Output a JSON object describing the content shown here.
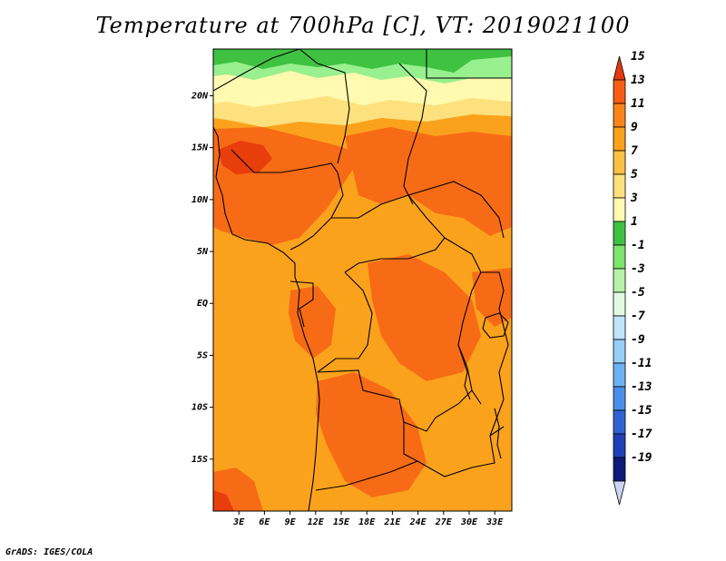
{
  "title": "Temperature at 700hPa [C], VT: 2019021100",
  "credit": "GrADS: IGES/COLA",
  "map": {
    "lon_range": [
      0,
      35
    ],
    "lat_range": [
      -20,
      24.5
    ],
    "x_ticks": [
      "3E",
      "6E",
      "9E",
      "12E",
      "15E",
      "18E",
      "21E",
      "24E",
      "27E",
      "30E",
      "33E"
    ],
    "y_ticks": [
      "20N",
      "15N",
      "10N",
      "5N",
      "EQ",
      "5S",
      "10S",
      "15S"
    ],
    "regions": [
      {
        "name": "far-north-band",
        "color": "#3fc142"
      },
      {
        "name": "north-light-band",
        "color": "#98f08e"
      },
      {
        "name": "north-yellow-band",
        "color": "#fffab0"
      },
      {
        "name": "north-gold-band",
        "color": "#fde17e"
      },
      {
        "name": "central-orange",
        "color": "#fba21d"
      },
      {
        "name": "warm-zone",
        "color": "#f76b16"
      },
      {
        "name": "hot-spot",
        "color": "#e73e0c"
      }
    ]
  },
  "colorbar": {
    "labels": [
      "15",
      "13",
      "11",
      "9",
      "7",
      "5",
      "3",
      "1",
      "-1",
      "-3",
      "-5",
      "-7",
      "-9",
      "-11",
      "-13",
      "-15",
      "-17",
      "-19"
    ],
    "colors": [
      "#e8380e",
      "#f55e14",
      "#f9851a",
      "#fba21d",
      "#fcc043",
      "#fde17e",
      "#fffab0",
      "#3fc142",
      "#7de46d",
      "#b5f3a8",
      "#e2fbe0",
      "#c0e4f9",
      "#97cff6",
      "#6eb2f1",
      "#4b8ee8",
      "#2f63cf",
      "#1f40b4",
      "#0f1a78",
      "#ccd4f2"
    ]
  }
}
